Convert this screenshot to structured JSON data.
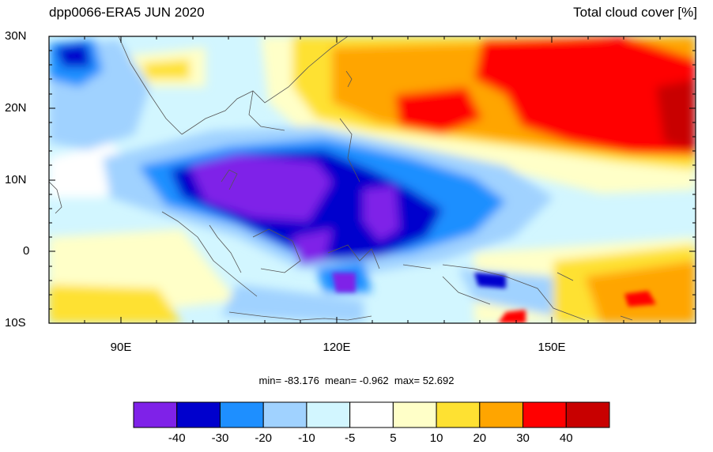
{
  "header": {
    "left_title": "dpp0066-ERA5 JUN 2020",
    "right_title": "Total cloud cover [%]"
  },
  "axes": {
    "lat_labels": [
      "30N",
      "20N",
      "10N",
      "0",
      "10S"
    ],
    "lon_labels": [
      "90E",
      "120E",
      "150E"
    ],
    "lat_range": [
      -10,
      30
    ],
    "lon_range": [
      80,
      170
    ]
  },
  "stats": {
    "min_label": "min=",
    "min": "-83.176",
    "mean_label": "mean=",
    "mean": "-0.962",
    "max_label": "max=",
    "max": "52.692"
  },
  "colorbar": {
    "colors": [
      "#7f22e8",
      "#0000cd",
      "#1e8fff",
      "#a0d2ff",
      "#d2f6ff",
      "#ffffff",
      "#ffffc8",
      "#fee132",
      "#ffa500",
      "#ff0000",
      "#c80000"
    ],
    "labels": [
      "-40",
      "-30",
      "-20",
      "-10",
      "-5",
      "5",
      "10",
      "20",
      "30",
      "40"
    ]
  }
}
